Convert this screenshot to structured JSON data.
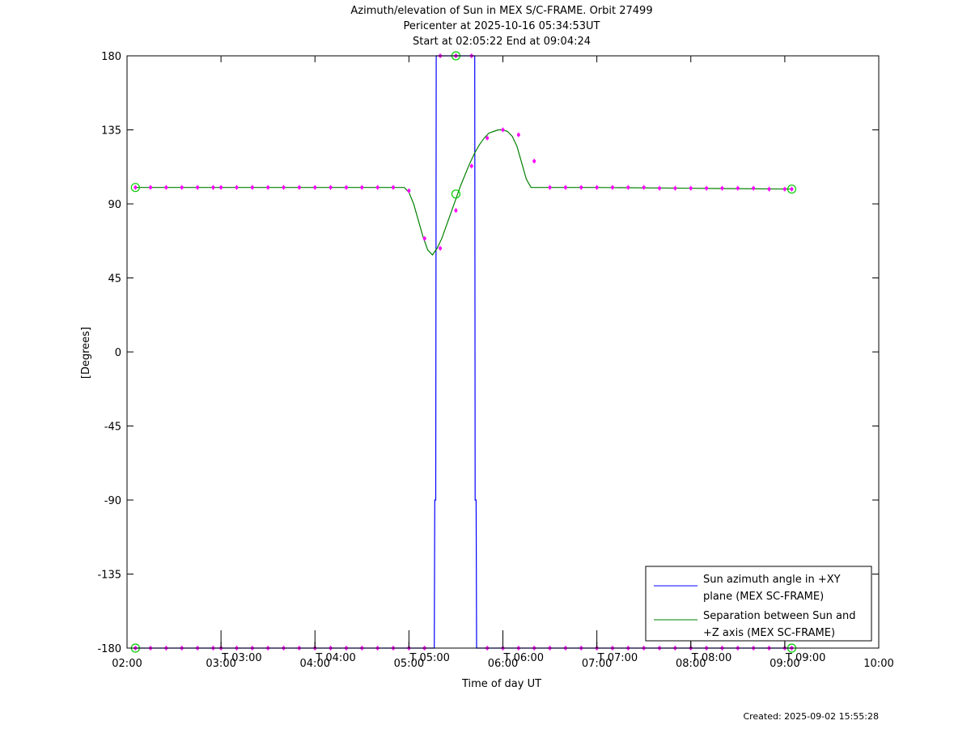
{
  "chart_data": {
    "type": "line",
    "title": [
      "Azimuth/elevation of Sun in MEX S/C-FRAME.  Orbit 27499",
      "Pericenter at 2025-10-16 05:34:53UT",
      "Start at 02:05:22 End at 09:04:24"
    ],
    "xlabel": "Time of day UT",
    "ylabel": "[Degrees]",
    "xlim": [
      2.0,
      10.0
    ],
    "ylim": [
      -180,
      180
    ],
    "x_ticks": [
      {
        "v": 2,
        "label": "02:00"
      },
      {
        "v": 3,
        "label": "03:00"
      },
      {
        "v": 4,
        "label": "04:00"
      },
      {
        "v": 5,
        "label": "05:00"
      },
      {
        "v": 6,
        "label": "06:00"
      },
      {
        "v": 7,
        "label": "07:00"
      },
      {
        "v": 8,
        "label": "08:00"
      },
      {
        "v": 9,
        "label": "09:00"
      },
      {
        "v": 10,
        "label": "10:00"
      }
    ],
    "y_ticks": [
      {
        "v": 180,
        "label": "180"
      },
      {
        "v": 135,
        "label": "135"
      },
      {
        "v": 90,
        "label": "90"
      },
      {
        "v": 45,
        "label": "45"
      },
      {
        "v": 0,
        "label": "0"
      },
      {
        "v": -45,
        "label": "-45"
      },
      {
        "v": -90,
        "label": "-90"
      },
      {
        "v": -135,
        "label": "-135"
      },
      {
        "v": -180,
        "label": "-180"
      }
    ],
    "hour_marks": [
      {
        "v": 3,
        "label": "T 03:00"
      },
      {
        "v": 4,
        "label": "T 04:00"
      },
      {
        "v": 5,
        "label": "T 05:00"
      },
      {
        "v": 6,
        "label": "T 06:00"
      },
      {
        "v": 7,
        "label": "T 07:00"
      },
      {
        "v": 8,
        "label": "T 08:00"
      },
      {
        "v": 9,
        "label": "T 09:00"
      }
    ],
    "series": [
      {
        "name": "Sun azimuth angle in +XY plane (MEX SC-FRAME)",
        "color": "#0000ff",
        "x": [
          2.089,
          5.27,
          5.275,
          5.285,
          5.29,
          5.7,
          5.705,
          5.715,
          5.72,
          9.074
        ],
        "y": [
          -180,
          -180,
          -90,
          -90,
          180,
          180,
          -90,
          -90,
          -180,
          -180
        ]
      },
      {
        "name": "Separation between Sun and +Z axis (MEX SC-FRAME)",
        "color": "#008000",
        "x": [
          2.089,
          3.0,
          4.0,
          4.95,
          5.0,
          5.05,
          5.1,
          5.15,
          5.2,
          5.25,
          5.3,
          5.35,
          5.4,
          5.45,
          5.5,
          5.55,
          5.6,
          5.65,
          5.7,
          5.75,
          5.8,
          5.85,
          5.9,
          5.95,
          6.0,
          6.05,
          6.1,
          6.15,
          6.2,
          6.25,
          6.3,
          6.35,
          6.4,
          7.0,
          8.0,
          9.074
        ],
        "y": [
          100,
          100,
          100,
          100,
          97,
          90,
          80,
          70,
          62,
          59,
          63,
          69,
          77,
          85,
          93,
          101,
          108,
          115,
          121,
          126,
          130,
          133,
          134,
          135,
          135,
          134,
          131,
          125,
          115,
          105,
          100,
          100,
          100,
          100,
          99.5,
          99
        ]
      }
    ],
    "markers": {
      "color": "#ff00ff",
      "sep_points": {
        "x": [
          2.089,
          2.25,
          2.4167,
          2.5833,
          2.75,
          2.9167,
          3.0,
          3.1667,
          3.3333,
          3.5,
          3.6667,
          3.8333,
          4.0,
          4.1667,
          4.3333,
          4.5,
          4.6667,
          4.8333,
          5.0,
          5.1667,
          5.3333,
          5.5,
          5.6667,
          5.8333,
          6.0,
          6.1667,
          6.3333,
          6.5,
          6.6667,
          6.8333,
          7.0,
          7.1667,
          7.3333,
          7.5,
          7.6667,
          7.8333,
          8.0,
          8.1667,
          8.3333,
          8.5,
          8.6667,
          8.8333,
          9.0,
          9.074
        ],
        "y": [
          100,
          100,
          100,
          100,
          100,
          100,
          100,
          100,
          100,
          100,
          100,
          100,
          100,
          100,
          100,
          100,
          100,
          100,
          98,
          69,
          63,
          86,
          113,
          130,
          135,
          132,
          116,
          100,
          100,
          100,
          100,
          100,
          100,
          100,
          99.5,
          99.5,
          99.5,
          99.5,
          99.5,
          99.5,
          99.5,
          99,
          99,
          99
        ]
      },
      "az_points_bottom": {
        "x": [
          2.089,
          2.25,
          2.4167,
          2.5833,
          2.75,
          2.9167,
          3.0,
          3.1667,
          3.3333,
          3.5,
          3.6667,
          3.8333,
          4.0,
          4.1667,
          4.3333,
          4.5,
          4.6667,
          4.8333,
          5.0,
          5.1667,
          5.8333,
          6.0,
          6.1667,
          6.3333,
          6.5,
          6.6667,
          6.8333,
          7.0,
          7.1667,
          7.3333,
          7.5,
          7.6667,
          7.8333,
          8.0,
          8.1667,
          8.3333,
          8.5,
          8.6667,
          8.8333,
          9.0,
          9.074
        ],
        "y": -180
      },
      "az_points_top": {
        "x": [
          5.3333,
          5.5,
          5.6667
        ],
        "y": 180
      },
      "circles_green": [
        {
          "x": 2.089,
          "y": 100
        },
        {
          "x": 2.089,
          "y": -180
        },
        {
          "x": 5.5,
          "y": 180
        },
        {
          "x": 5.5,
          "y": 96
        },
        {
          "x": 9.074,
          "y": 99
        },
        {
          "x": 9.074,
          "y": -180
        }
      ]
    },
    "legend_position": "bottom-right",
    "grid": false
  },
  "footer": {
    "created": "Created: 2025-09-02 15:55:28"
  }
}
